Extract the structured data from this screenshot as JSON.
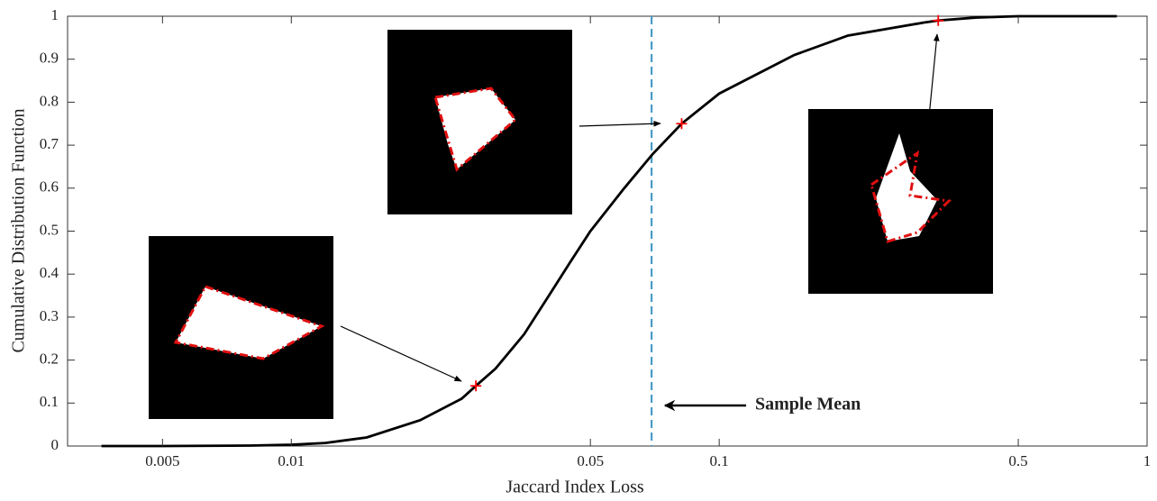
{
  "chart_data": {
    "type": "line",
    "x_label": "Jaccard Index Loss",
    "y_label": "Cumulative Distribution Function",
    "xscale": "log",
    "xlim": [
      0.003,
      1
    ],
    "ylim": [
      0,
      1
    ],
    "xticks": [
      0.005,
      0.01,
      0.05,
      0.1,
      0.5,
      1
    ],
    "yticks": [
      0,
      0.1,
      0.2,
      0.3,
      0.4,
      0.5,
      0.6,
      0.7,
      0.8,
      0.9,
      1
    ],
    "series": [
      {
        "color": "#000000",
        "x": [
          0.0036,
          0.005,
          0.008,
          0.01,
          0.012,
          0.015,
          0.02,
          0.025,
          0.027,
          0.03,
          0.035,
          0.04,
          0.045,
          0.05,
          0.06,
          0.07,
          0.0817,
          0.1,
          0.15,
          0.2,
          0.3,
          0.325,
          0.4,
          0.5,
          0.85
        ],
        "values": [
          0,
          0,
          0.001,
          0.003,
          0.007,
          0.02,
          0.06,
          0.11,
          0.14,
          0.18,
          0.26,
          0.35,
          0.43,
          0.5,
          0.6,
          0.68,
          0.75,
          0.82,
          0.91,
          0.955,
          0.985,
          0.99,
          0.997,
          1,
          1
        ]
      }
    ],
    "markers": {
      "color": "#ff0000",
      "x": [
        0.027,
        0.0817,
        0.325
      ],
      "values": [
        0.14,
        0.75,
        0.99
      ]
    },
    "sample_mean": {
      "x": 0.0695,
      "label": "Sample Mean",
      "color": "#4a9cc7"
    }
  }
}
